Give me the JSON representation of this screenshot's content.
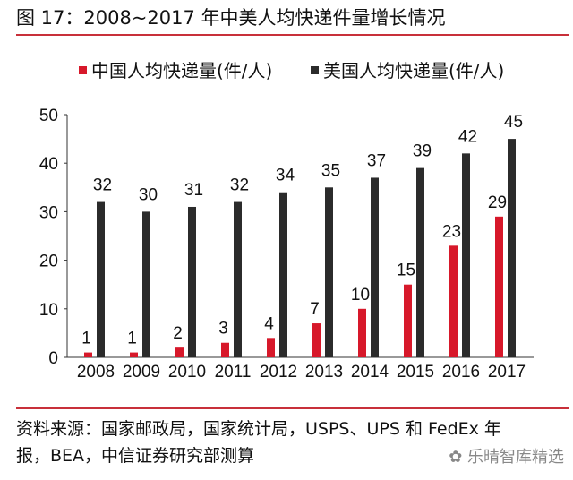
{
  "title": "图 17：2008~2017 年中美人均快递件量增长情况",
  "source_line1": "资料来源：国家邮政局，国家统计局，USPS、UPS 和 FedEx 年",
  "source_line2": "报，BEA，中信证券研究部测算",
  "watermark": "乐晴智库精选",
  "chart_data": {
    "type": "bar",
    "categories": [
      "2008",
      "2009",
      "2010",
      "2011",
      "2012",
      "2013",
      "2014",
      "2015",
      "2016",
      "2017"
    ],
    "series": [
      {
        "name": "中国人均快递量(件/人)",
        "color": "#d7182a",
        "values": [
          1,
          1,
          2,
          3,
          4,
          7,
          10,
          15,
          23,
          29
        ]
      },
      {
        "name": "美国人均快递量(件/人)",
        "color": "#2b2b2b",
        "values": [
          32,
          30,
          31,
          32,
          34,
          35,
          37,
          39,
          42,
          45
        ]
      }
    ],
    "ylim": [
      0,
      50
    ],
    "yticks": [
      0,
      10,
      20,
      30,
      40,
      50
    ],
    "grid": false,
    "legend": "top",
    "data_labels": true
  }
}
